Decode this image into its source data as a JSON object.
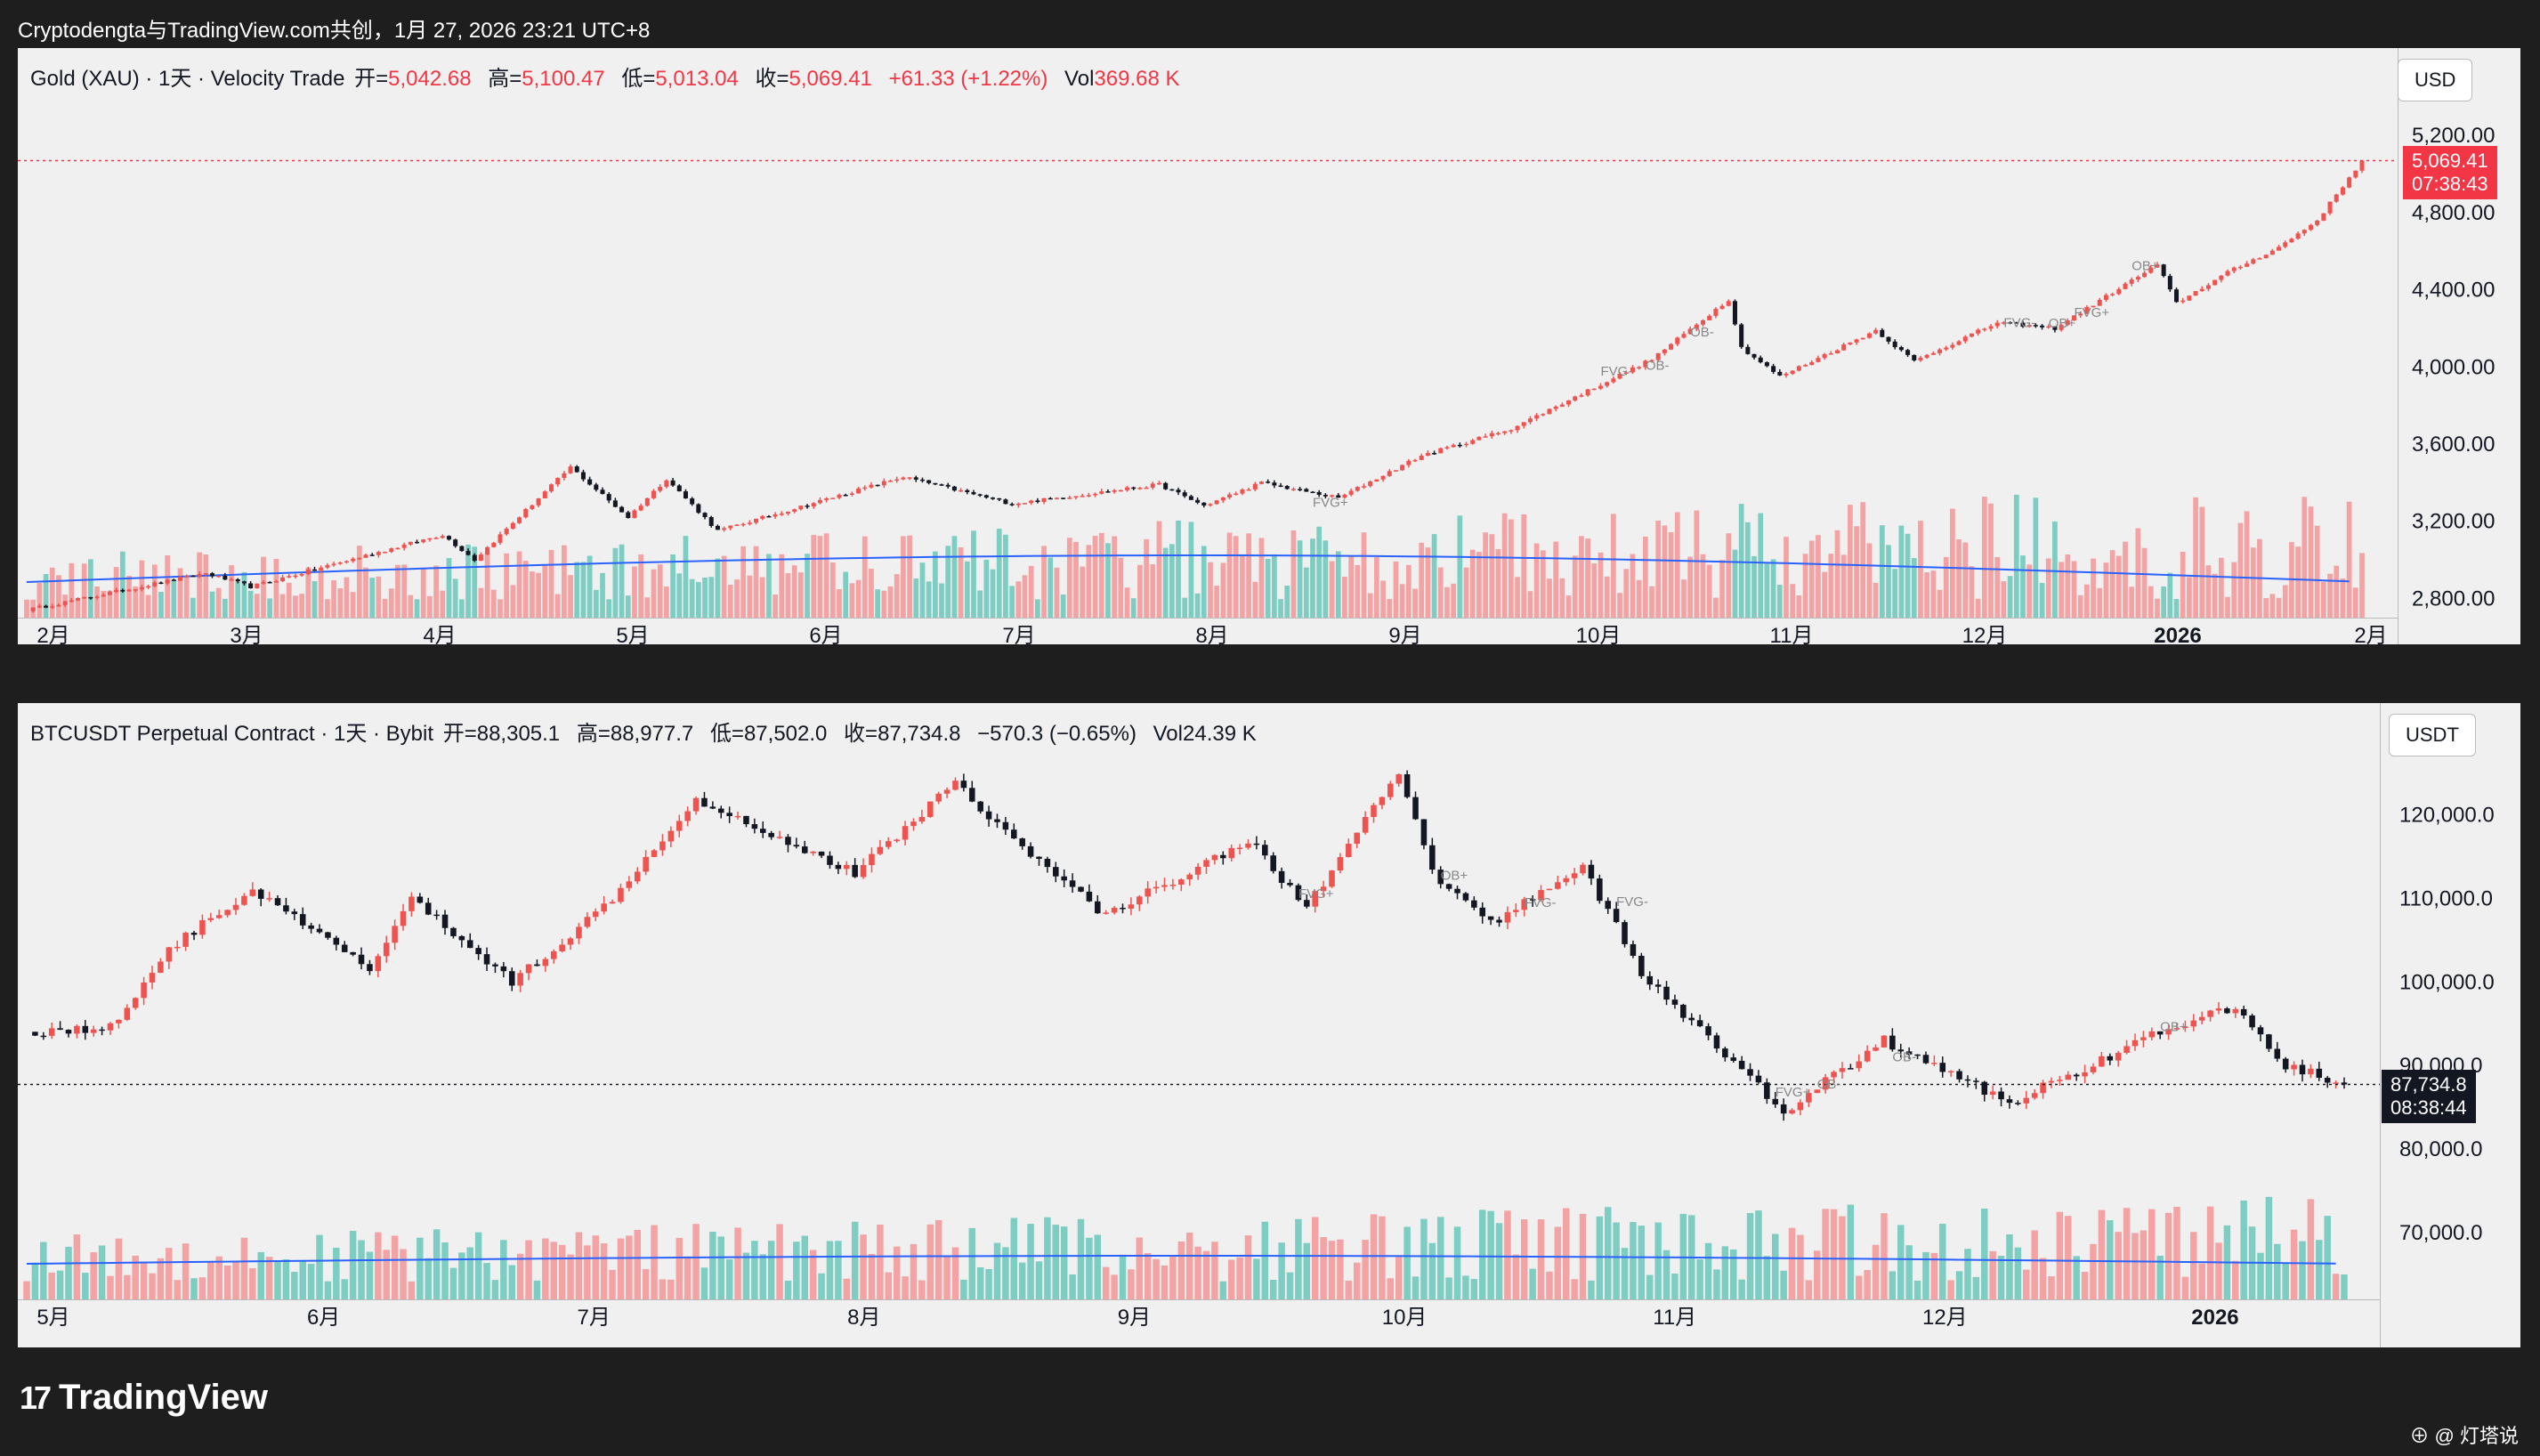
{
  "header": {
    "title": "Cryptodengta与TradingView.com共创，1月 27, 2026 23:21 UTC+8"
  },
  "gold": {
    "symbol": "Gold (XAU) · 1天 · Velocity Trade",
    "open_label": "开=",
    "open": "5,042.68",
    "high_label": "高=",
    "high": "5,100.47",
    "low_label": "低=",
    "low": "5,013.04",
    "close_label": "收=",
    "close": "5,069.41",
    "change": "+61.33 (+1.22%)",
    "vol_label": "Vol",
    "vol": "369.68 K",
    "currency": "USD",
    "last_price": "5,069.41",
    "countdown": "07:38:43"
  },
  "btc": {
    "symbol": "BTCUSDT Perpetual Contract · 1天 · Bybit",
    "open_label": "开=",
    "open": "88,305.1",
    "high_label": "高=",
    "high": "88,977.7",
    "low_label": "低=",
    "low": "87,502.0",
    "close_label": "收=",
    "close": "87,734.8",
    "change": "−570.3 (−0.65%)",
    "vol_label": "Vol",
    "vol": "24.39 K",
    "currency": "USDT",
    "last_price": "87,734.8",
    "countdown": "08:38:44"
  },
  "footer": {
    "logo": "TradingView",
    "watermark": "⊕ @ 灯塔说"
  },
  "colors": {
    "up": "#ef5350",
    "down": "#131722",
    "vol_up": "#f3a3a3",
    "vol_down": "#7ecdc2",
    "ma": "#2962ff",
    "bg": "#f0f0f0"
  },
  "chart_data": [
    {
      "type": "candlestick",
      "title": "Gold (XAU) · 1天 · Velocity Trade",
      "x_ticks": [
        "2月",
        "3月",
        "4月",
        "5月",
        "6月",
        "7月",
        "8月",
        "9月",
        "10月",
        "11月",
        "12月",
        "2026",
        "2月"
      ],
      "y_ticks": [
        "2,800.00",
        "3,200.00",
        "3,600.00",
        "4,000.00",
        "4,400.00",
        "4,800.00",
        "5,200.00"
      ],
      "ylim": [
        2700,
        5330
      ],
      "anchors": [
        {
          "date": "2025-01-27",
          "price": 2740
        },
        {
          "date": "2025-02-24",
          "price": 2930
        },
        {
          "date": "2025-03-03",
          "price": 2860
        },
        {
          "date": "2025-04-02",
          "price": 3130
        },
        {
          "date": "2025-04-07",
          "price": 3000
        },
        {
          "date": "2025-04-22",
          "price": 3480
        },
        {
          "date": "2025-05-01",
          "price": 3220
        },
        {
          "date": "2025-05-07",
          "price": 3420
        },
        {
          "date": "2025-05-15",
          "price": 3150
        },
        {
          "date": "2025-06-13",
          "price": 3430
        },
        {
          "date": "2025-06-30",
          "price": 3290
        },
        {
          "date": "2025-07-23",
          "price": 3390
        },
        {
          "date": "2025-07-30",
          "price": 3280
        },
        {
          "date": "2025-08-08",
          "price": 3400
        },
        {
          "date": "2025-08-20",
          "price": 3320
        },
        {
          "date": "2025-09-02",
          "price": 3540
        },
        {
          "date": "2025-09-16",
          "price": 3680
        },
        {
          "date": "2025-10-08",
          "price": 4040
        },
        {
          "date": "2025-10-20",
          "price": 4350
        },
        {
          "date": "2025-10-22",
          "price": 4100
        },
        {
          "date": "2025-10-28",
          "price": 3950
        },
        {
          "date": "2025-11-12",
          "price": 4190
        },
        {
          "date": "2025-11-18",
          "price": 4030
        },
        {
          "date": "2025-12-01",
          "price": 4230
        },
        {
          "date": "2025-12-10",
          "price": 4200
        },
        {
          "date": "2025-12-26",
          "price": 4530
        },
        {
          "date": "2025-12-29",
          "price": 4330
        },
        {
          "date": "2026-01-06",
          "price": 4490
        },
        {
          "date": "2026-01-14",
          "price": 4620
        },
        {
          "date": "2026-01-20",
          "price": 4760
        },
        {
          "date": "2026-01-27",
          "price": 5069.41
        }
      ],
      "annotations": [
        "FVG+",
        "FVG-",
        "OB+",
        "OB-"
      ],
      "last_price": 5069.41
    },
    {
      "type": "candlestick",
      "title": "BTCUSDT Perpetual Contract · 1天 · Bybit",
      "x_ticks": [
        "5月",
        "6月",
        "7月",
        "8月",
        "9月",
        "10月",
        "11月",
        "12月",
        "2026"
      ],
      "y_ticks": [
        "70,000.0",
        "80,000.0",
        "90,000.0",
        "100,000.0",
        "110,000.0",
        "120,000.0"
      ],
      "ylim": [
        62000,
        127000
      ],
      "anchors": [
        {
          "date": "2025-04-25",
          "price": 94000
        },
        {
          "date": "2025-05-05",
          "price": 94500
        },
        {
          "date": "2025-05-12",
          "price": 104000
        },
        {
          "date": "2025-05-22",
          "price": 111000
        },
        {
          "date": "2025-06-05",
          "price": 101500
        },
        {
          "date": "2025-06-10",
          "price": 110000
        },
        {
          "date": "2025-06-22",
          "price": 100000
        },
        {
          "date": "2025-07-03",
          "price": 109000
        },
        {
          "date": "2025-07-14",
          "price": 122000
        },
        {
          "date": "2025-08-02",
          "price": 113000
        },
        {
          "date": "2025-08-14",
          "price": 124000
        },
        {
          "date": "2025-08-22",
          "price": 116000
        },
        {
          "date": "2025-09-01",
          "price": 108000
        },
        {
          "date": "2025-09-18",
          "price": 117000
        },
        {
          "date": "2025-09-25",
          "price": 109000
        },
        {
          "date": "2025-10-06",
          "price": 125000
        },
        {
          "date": "2025-10-10",
          "price": 113000
        },
        {
          "date": "2025-10-17",
          "price": 107000
        },
        {
          "date": "2025-10-28",
          "price": 114000
        },
        {
          "date": "2025-11-04",
          "price": 101000
        },
        {
          "date": "2025-11-21",
          "price": 84500
        },
        {
          "date": "2025-12-03",
          "price": 93000
        },
        {
          "date": "2025-12-18",
          "price": 85500
        },
        {
          "date": "2026-01-05",
          "price": 94000
        },
        {
          "date": "2026-01-14",
          "price": 97000
        },
        {
          "date": "2026-01-20",
          "price": 90000
        },
        {
          "date": "2026-01-27",
          "price": 87734.8
        }
      ],
      "annotations": [
        "FVG+",
        "FVG-",
        "OB+",
        "OB-"
      ],
      "last_price": 87734.8
    }
  ]
}
